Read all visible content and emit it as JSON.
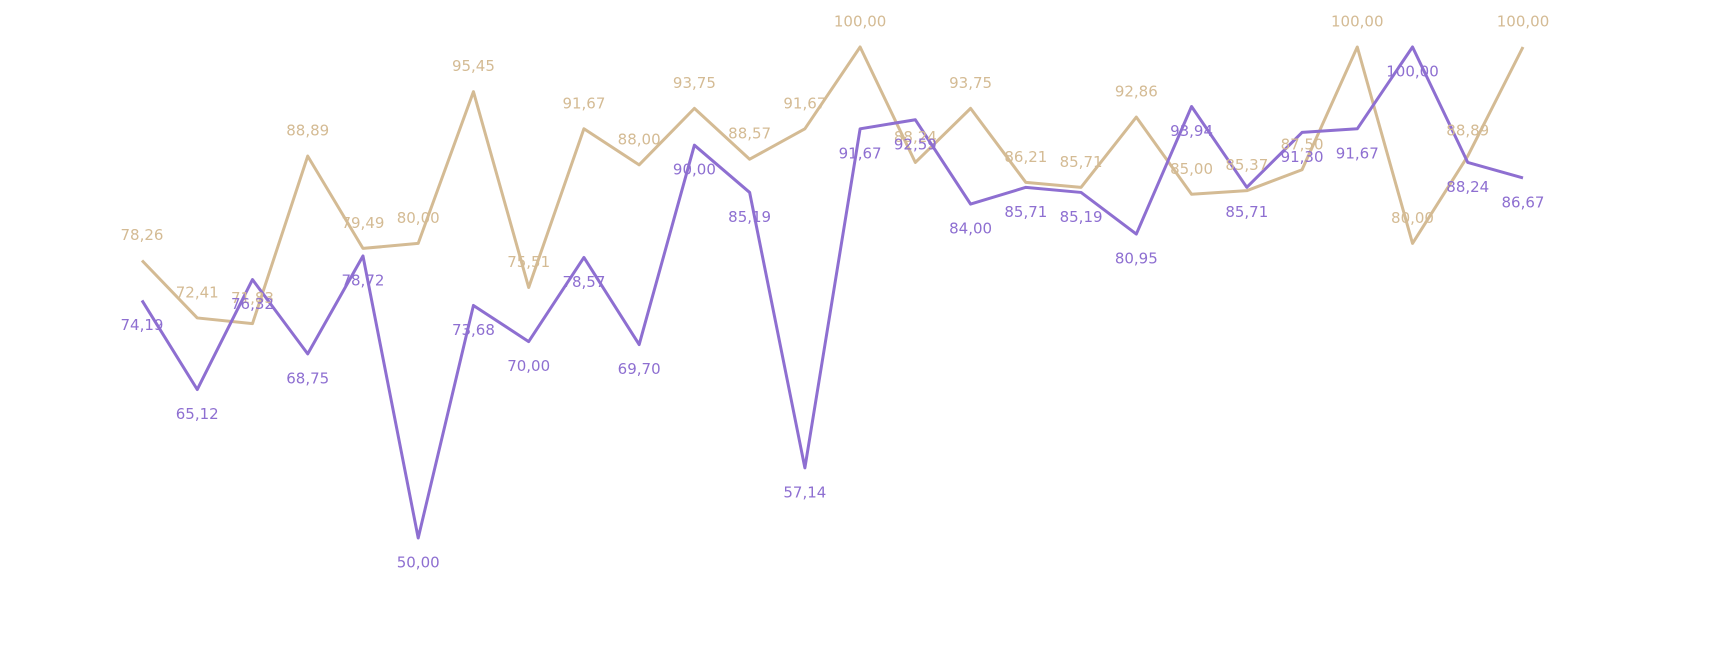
{
  "chart_data": {
    "type": "line",
    "categories": [
      null,
      null,
      null,
      null,
      null,
      null,
      null,
      null,
      null,
      null,
      null,
      null,
      null,
      null,
      null,
      null,
      null,
      null,
      null,
      null,
      null,
      null,
      null,
      null,
      null,
      null
    ],
    "series": [
      {
        "name": null,
        "color": "#d4bb94",
        "values": [
          78.26,
          72.41,
          71.83,
          88.89,
          79.49,
          80.0,
          95.45,
          75.51,
          91.67,
          88.0,
          93.75,
          88.57,
          91.67,
          100.0,
          88.24,
          93.75,
          86.21,
          85.71,
          92.86,
          85.0,
          85.37,
          87.5,
          100.0,
          80.0,
          88.89,
          100.0
        ],
        "value_labels": [
          "78,26",
          "72,41",
          "71,83",
          "88,89",
          "79,49",
          "80,00",
          "95,45",
          "75,51",
          "91,67",
          "88,00",
          "93,75",
          "88,57",
          "91,67",
          "100,00",
          "88,24",
          "93,75",
          "86,21",
          "85,71",
          "92,86",
          "85,00",
          "85,37",
          "87,50",
          "100,00",
          "80,00",
          "88,89",
          "100,00"
        ]
      },
      {
        "name": null,
        "color": "#8e6fd1",
        "values": [
          74.19,
          65.12,
          76.32,
          68.75,
          78.72,
          50.0,
          73.68,
          70.0,
          78.57,
          69.7,
          90.0,
          85.19,
          57.14,
          91.67,
          92.59,
          84.0,
          85.71,
          85.19,
          80.95,
          93.94,
          85.71,
          91.3,
          91.67,
          100.0,
          88.24,
          86.67
        ],
        "value_labels": [
          "74,19",
          "65,12",
          "76,32",
          "68,75",
          "78,72",
          "50,00",
          "73,68",
          "70,00",
          "78,57",
          "69,70",
          "90,00",
          "85,19",
          "57,14",
          "91,67",
          "92,59",
          "84,00",
          "85,71",
          "85,19",
          "80,95",
          "93,94",
          "85,71",
          "91,30",
          "91,67",
          "100,00",
          "88,24",
          "86,67"
        ]
      }
    ]
  }
}
